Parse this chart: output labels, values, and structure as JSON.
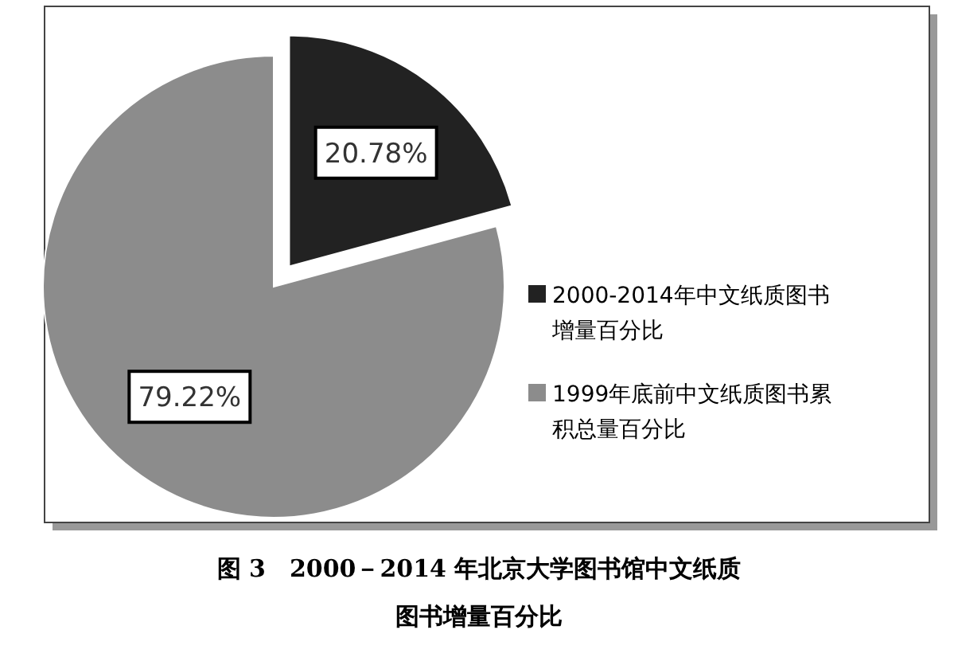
{
  "chart_data": {
    "type": "pie",
    "title": "图 3　2000－2014 年北京大学图书馆中文纸质图书增量百分比",
    "categories": [
      "2000-2014年中文纸质图书增量百分比",
      "1999年底前中文纸质图书累积总量百分比"
    ],
    "values": [
      20.78,
      79.22
    ],
    "colors": [
      "#222222",
      "#8c8c8c"
    ],
    "value_labels": [
      "20.78%",
      "79.22%"
    ],
    "legend": "right"
  }
}
